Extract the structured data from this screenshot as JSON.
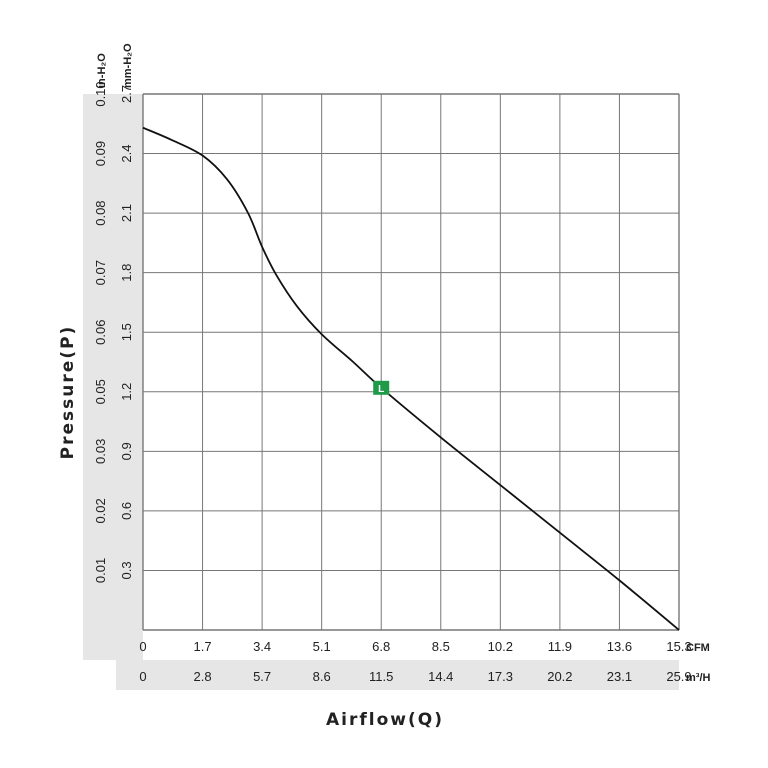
{
  "chart_data": {
    "type": "line",
    "xlabel": "Airflow(Q)",
    "ylabel": "Pressure(P)",
    "x_units": {
      "primary": "CFM",
      "secondary": "m³/H"
    },
    "y_units": {
      "primary": "mm-H₂O",
      "secondary": "in-H₂O"
    },
    "xlim": [
      0,
      15.3
    ],
    "ylim": [
      0,
      2.7
    ],
    "x_ticks_cfm": [
      "0",
      "1.7",
      "3.4",
      "5.1",
      "6.8",
      "8.5",
      "10.2",
      "11.9",
      "13.6",
      "15.3"
    ],
    "x_ticks_m3h": [
      "0",
      "2.8",
      "5.7",
      "8.6",
      "11.5",
      "14.4",
      "17.3",
      "20.2",
      "23.1",
      "25.9"
    ],
    "y_ticks_mm": [
      "0.3",
      "0.6",
      "0.9",
      "1.2",
      "1.5",
      "1.8",
      "2.1",
      "2.4",
      "2.7"
    ],
    "y_ticks_in": [
      "0.01",
      "0.02",
      "0.03",
      "0.05",
      "0.06",
      "0.07",
      "0.08",
      "0.09",
      "0.10"
    ],
    "grid": true,
    "series": [
      {
        "x": [
          0,
          0.8,
          1.7,
          2.4,
          3.0,
          3.4,
          3.8,
          4.4,
          5.1,
          6.0,
          6.8,
          8.5,
          10.2,
          11.9,
          13.6,
          15.3
        ],
        "y": [
          2.53,
          2.47,
          2.39,
          2.27,
          2.1,
          1.93,
          1.79,
          1.63,
          1.49,
          1.35,
          1.22,
          0.97,
          0.73,
          0.49,
          0.25,
          0
        ],
        "color": "#111111"
      }
    ],
    "marker": {
      "label": "L",
      "x": 6.8,
      "y": 1.22,
      "color": "#1e9a49"
    }
  }
}
